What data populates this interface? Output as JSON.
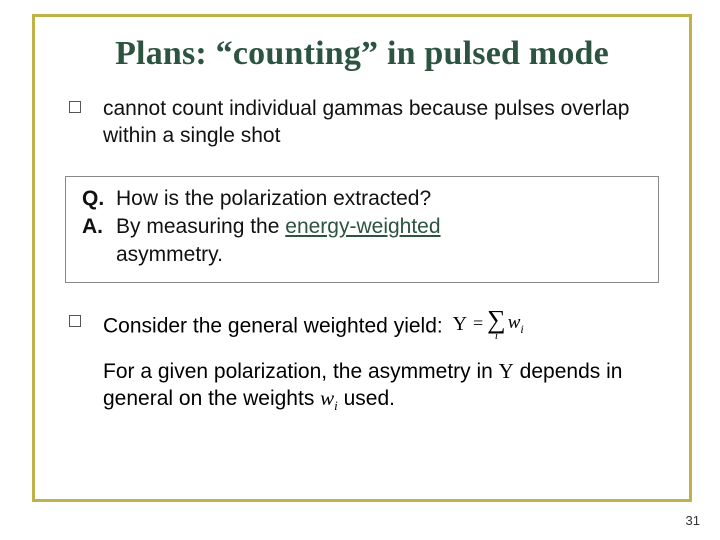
{
  "title": "Plans: “counting” in pulsed mode",
  "bullet1": "cannot count individual gammas because pulses overlap within a single shot",
  "q_label": "Q.",
  "q_text": "How is the polarization extracted?",
  "a_label": "A.",
  "a_pre": "By measuring the ",
  "a_em": "energy-weighted",
  "a_post": " asymmetry.",
  "yield_text": "Consider the general weighted yield:",
  "formula": {
    "Y": "Y",
    "eq": "=",
    "sigma": "∑",
    "idx": "i",
    "w": "w",
    "wi": "i"
  },
  "para_pre": "For a given polarization, the asymmetry in ",
  "para_Y": "Y",
  "para_mid": " depends in general on the weights ",
  "para_w": "w",
  "para_wi": "i",
  "para_end": " used.",
  "page": "31",
  "colors": {
    "frame_border": "#c0b248",
    "title_color": "#2c5440",
    "accent": "#2c5440",
    "box_border": "#888888",
    "text": "#111111",
    "bg": "#ffffff"
  }
}
